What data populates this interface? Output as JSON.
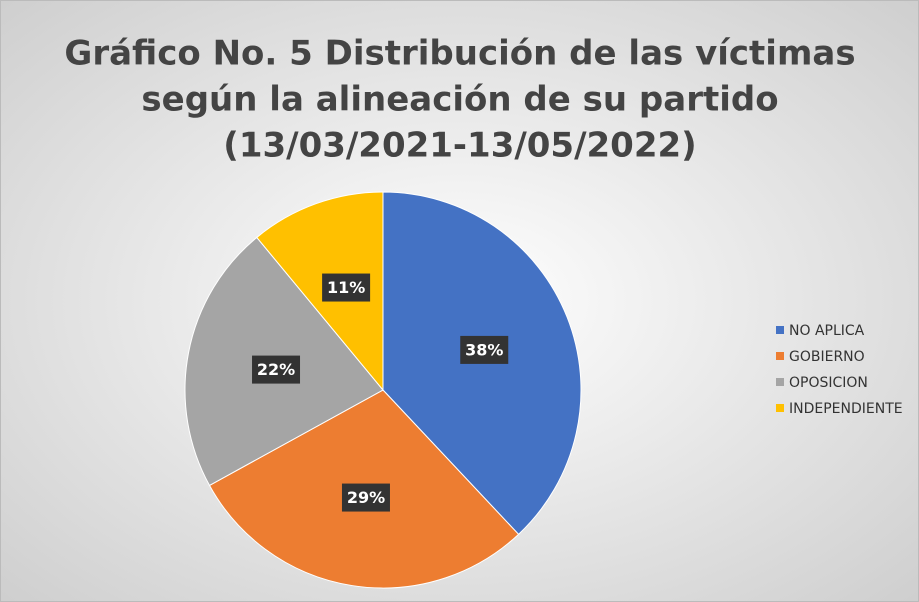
{
  "chart_data": {
    "type": "pie",
    "title": [
      "Gráfico No. 5 Distribución de las víctimas",
      "según la alineación de su partido",
      "(13/03/2021-13/05/2022)"
    ],
    "categories": [
      "NO APLICA",
      "GOBIERNO",
      "OPOSICION",
      "INDEPENDIENTE"
    ],
    "values": [
      38,
      29,
      22,
      11
    ],
    "value_labels": [
      "38%",
      "29%",
      "22%",
      "11%"
    ],
    "colors": [
      "#4472c4",
      "#ed7d31",
      "#a5a5a5",
      "#ffc000"
    ],
    "legend": "right"
  }
}
